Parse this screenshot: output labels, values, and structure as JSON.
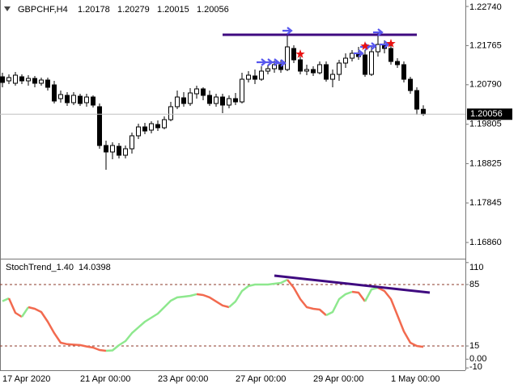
{
  "chart_data": [
    {
      "type": "candlestick",
      "symbol": "GBPCHF,H4",
      "categories": [
        "17 Apr 2020",
        null,
        null,
        null,
        null,
        null,
        null,
        null,
        null,
        null,
        null,
        null,
        "21 Apr 00:00",
        null,
        null,
        null,
        null,
        null,
        null,
        null,
        null,
        null,
        null,
        null,
        "23 Apr 00:00",
        null,
        null,
        null,
        null,
        null,
        null,
        null,
        null,
        null,
        null,
        null,
        "27 Apr 00:00",
        null,
        null,
        null,
        null,
        null,
        null,
        null,
        null,
        null,
        null,
        null,
        "29 Apr 00:00",
        null,
        null,
        null,
        null,
        null,
        null,
        null,
        null,
        null,
        null,
        null,
        "1 May 00:00",
        null,
        null,
        null,
        null,
        null
      ],
      "open": [
        1.20988,
        1.20887,
        1.20827,
        1.20988,
        1.20887,
        1.20947,
        1.20827,
        1.20907,
        1.20786,
        1.20444,
        1.20525,
        1.20343,
        1.20504,
        1.20343,
        1.20484,
        1.20243,
        1.19276,
        1.19115,
        1.19256,
        1.19034,
        1.19195,
        1.19518,
        1.19739,
        1.19659,
        1.19799,
        1.19719,
        1.1992,
        1.20243,
        1.20464,
        1.20323,
        1.20565,
        1.20686,
        1.20525,
        1.20323,
        1.20484,
        1.20283,
        1.20444,
        1.20363,
        1.20927,
        1.21008,
        1.20927,
        1.21129,
        1.21189,
        1.2129,
        1.21169,
        1.21693,
        1.21411,
        1.21129,
        1.21169,
        1.21088,
        1.2129,
        1.20927,
        1.21048,
        1.2133,
        1.21451,
        1.21572,
        1.21532,
        1.21048,
        1.21612,
        1.21793,
        1.21693,
        1.2137,
        1.2129,
        1.20927,
        1.20645,
        1.20178
      ],
      "high": [
        1.21088,
        1.21048,
        1.21109,
        1.21048,
        1.21028,
        1.21008,
        1.20968,
        1.20968,
        1.20887,
        1.20645,
        1.20605,
        1.20605,
        1.20565,
        1.20565,
        1.20525,
        1.20323,
        1.19397,
        1.19356,
        1.19336,
        1.19276,
        1.19598,
        1.1982,
        1.1984,
        1.1988,
        1.199,
        1.20001,
        1.20363,
        1.20645,
        1.20605,
        1.20706,
        1.20766,
        1.20726,
        1.20645,
        1.20565,
        1.20565,
        1.20525,
        1.20585,
        1.21088,
        1.21129,
        1.21169,
        1.2125,
        1.2129,
        1.21391,
        1.21411,
        1.22055,
        1.21773,
        1.21491,
        1.2129,
        1.2125,
        1.2137,
        1.2137,
        1.21169,
        1.21411,
        1.21572,
        1.21652,
        1.21733,
        1.21652,
        1.21733,
        1.22096,
        1.21894,
        1.21773,
        1.21451,
        1.2137,
        1.20988,
        1.20726,
        1.20279
      ],
      "low": [
        1.20726,
        1.20806,
        1.20766,
        1.20806,
        1.20766,
        1.20726,
        1.20766,
        1.20645,
        1.20323,
        1.20343,
        1.20263,
        1.20283,
        1.20263,
        1.20243,
        1.20222,
        1.19195,
        1.18672,
        1.18934,
        1.18954,
        1.18954,
        1.19075,
        1.19437,
        1.19558,
        1.19578,
        1.19638,
        1.19679,
        1.1988,
        1.20182,
        1.20243,
        1.20263,
        1.20444,
        1.20404,
        1.20263,
        1.20243,
        1.20082,
        1.20202,
        1.20283,
        1.20323,
        1.20847,
        1.20806,
        1.20887,
        1.21048,
        1.21088,
        1.21088,
        1.21129,
        1.2133,
        1.21048,
        1.21028,
        1.21008,
        1.21048,
        1.20867,
        1.20726,
        1.20887,
        1.21209,
        1.2137,
        1.21411,
        1.20988,
        1.21008,
        1.21491,
        1.21572,
        1.2129,
        1.21209,
        1.20847,
        1.20565,
        1.20041,
        1.20015
      ],
      "close": [
        1.20847,
        1.20968,
        1.21028,
        1.20887,
        1.20947,
        1.20827,
        1.20907,
        1.20726,
        1.20384,
        1.20545,
        1.20343,
        1.20525,
        1.20323,
        1.20484,
        1.20283,
        1.19276,
        1.19115,
        1.19276,
        1.19034,
        1.19195,
        1.19518,
        1.19739,
        1.19638,
        1.1982,
        1.19719,
        1.1992,
        1.20243,
        1.20484,
        1.20323,
        1.20585,
        1.20686,
        1.20525,
        1.20323,
        1.20484,
        1.20283,
        1.20444,
        1.20363,
        1.20927,
        1.21028,
        1.20927,
        1.21129,
        1.21189,
        1.2129,
        1.21169,
        1.21733,
        1.21411,
        1.21129,
        1.21169,
        1.21088,
        1.2129,
        1.20927,
        1.21048,
        1.2133,
        1.21451,
        1.21572,
        1.21491,
        1.21048,
        1.21612,
        1.21793,
        1.21693,
        1.2137,
        1.2129,
        1.20927,
        1.20645,
        1.20182,
        1.20056
      ],
      "up_color": "#ffffff",
      "down_color": "#000000",
      "ylim": [
        1.16497,
        1.22901
      ],
      "yticks": [
        {
          "value": 1.2274,
          "label": "1.22740"
        },
        {
          "value": 1.21765,
          "label": "1.21765"
        },
        {
          "value": 1.2079,
          "label": "1.20790"
        },
        {
          "value": 1.19805,
          "label": "1.19805"
        },
        {
          "value": 1.18825,
          "label": "1.18825"
        },
        {
          "value": 1.17845,
          "label": "1.17845"
        },
        {
          "value": 1.1686,
          "label": "1.16860"
        }
      ],
      "trendlines": [
        {
          "from": [
            34,
            1.22035
          ],
          "to": [
            64,
            1.22035
          ],
          "color": "#3f0a80"
        }
      ],
      "arrows": [
        {
          "bar": 40,
          "price": 1.2135
        },
        {
          "bar": 41,
          "price": 1.2135
        },
        {
          "bar": 42,
          "price": 1.2135
        },
        {
          "bar": 43,
          "price": 1.2133
        },
        {
          "bar": 44,
          "price": 1.22136
        },
        {
          "bar": 55,
          "price": 1.21572
        },
        {
          "bar": 56,
          "price": 1.21733
        },
        {
          "bar": 57,
          "price": 1.21753
        },
        {
          "bar": 58,
          "price": 1.22096
        },
        {
          "bar": 59,
          "price": 1.21793
        }
      ],
      "arrow_color": "#5656ee",
      "stars": [
        {
          "bar": 46,
          "price": 1.21552
        },
        {
          "bar": 56,
          "price": 1.21753
        },
        {
          "bar": 60,
          "price": 1.21814
        }
      ],
      "star_color": "#e81010"
    },
    {
      "type": "line",
      "title": "StochTrend_1.40",
      "values": [
        66,
        69.3,
        52.8,
        48.2,
        59.2,
        57.4,
        53.7,
        42.6,
        29.7,
        18.7,
        17.0,
        16.5,
        16.0,
        14.5,
        13.2,
        10.4,
        9.5,
        10.0,
        15.9,
        20.5,
        29.7,
        36.2,
        42.6,
        47.2,
        51.8,
        59.2,
        66.6,
        70.3,
        71.2,
        72.1,
        74.0,
        73.0,
        70.3,
        65.7,
        61.1,
        59.2,
        65.7,
        77.6,
        83.2,
        85.0,
        85.0,
        85.0,
        85.9,
        86.8,
        90.5,
        81.3,
        68.4,
        59.2,
        57.4,
        56.4,
        50.0,
        53.7,
        68.4,
        74.0,
        76.7,
        75.8,
        65.7,
        79.5,
        81.3,
        77.6,
        68.4,
        50.0,
        31.6,
        18.7,
        15.0,
        14.0398
      ],
      "up_color": "#8ee88e",
      "down_color": "#f26a4f",
      "ylim": [
        -12.6,
        112.6
      ],
      "yticks": [
        110,
        85,
        15,
        {
          "value": 0,
          "label": "0.00"
        },
        -10
      ],
      "levels": [
        85,
        15
      ],
      "trendlines": [
        {
          "from": [
            42,
            95.1
          ],
          "to": [
            66,
            75.8
          ],
          "color": "#3f0a80"
        }
      ]
    }
  ]
}
